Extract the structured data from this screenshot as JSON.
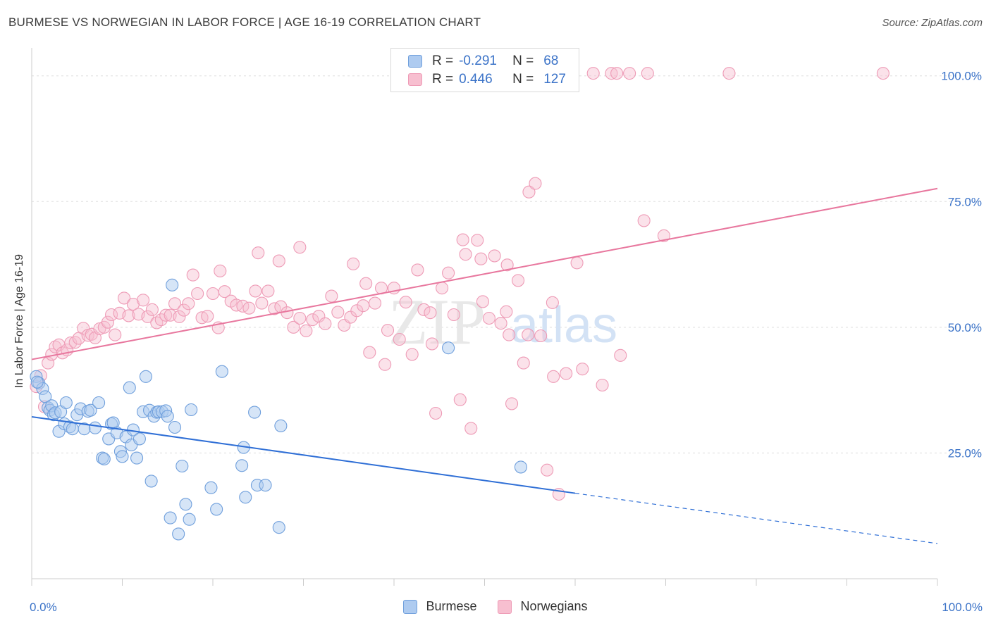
{
  "title": "BURMESE VS NORWEGIAN IN LABOR FORCE | AGE 16-19 CORRELATION CHART",
  "source": "Source: ZipAtlas.com",
  "watermark": {
    "zip": "ZIP",
    "atlas": "atlas"
  },
  "colors": {
    "burmese_fill": "#aecbf0",
    "burmese_stroke": "#6f9fdc",
    "burmese_line": "#2f6fd6",
    "norwegian_fill": "#f7bfd0",
    "norwegian_stroke": "#ee9bb6",
    "norwegian_line": "#e8779e",
    "axis_label": "#3b73c8",
    "grid": "#dddddd"
  },
  "legend": {
    "rows": [
      {
        "r_label": "R =",
        "r_value": "-0.291",
        "n_label": "N =",
        "n_value": "68"
      },
      {
        "r_label": "R =",
        "r_value": "0.446",
        "n_label": "N =",
        "n_value": "127"
      }
    ],
    "bottom": [
      "Burmese",
      "Norwegians"
    ]
  },
  "chart_data": {
    "type": "scatter",
    "title": "BURMESE VS NORWEGIAN IN LABOR FORCE | AGE 16-19 CORRELATION CHART",
    "xlabel": "",
    "ylabel": "In Labor Force | Age 16-19",
    "xlim": [
      0,
      100
    ],
    "ylim": [
      0,
      105
    ],
    "x_tick_labels": [
      "0.0%",
      "100.0%"
    ],
    "y_ticks": [
      25,
      50,
      75,
      100
    ],
    "y_tick_labels": [
      "25.0%",
      "50.0%",
      "75.0%",
      "100.0%"
    ],
    "grid": true,
    "legend_position": "top-center",
    "series": [
      {
        "name": "Burmese",
        "r": -0.291,
        "n": 68,
        "trend": {
          "x0": 0,
          "y0": 32.2,
          "x1": 60,
          "y1": 17.0,
          "dashed_to_x": 100,
          "dashed_to_y": 7.0
        },
        "points": [
          [
            0.5,
            40.2
          ],
          [
            0.8,
            38.9
          ],
          [
            1.2,
            37.8
          ],
          [
            1.5,
            36.2
          ],
          [
            1.8,
            34.0
          ],
          [
            2.0,
            33.5
          ],
          [
            2.2,
            34.4
          ],
          [
            2.4,
            32.6
          ],
          [
            2.6,
            33.0
          ],
          [
            3.0,
            29.3
          ],
          [
            3.2,
            33.2
          ],
          [
            3.6,
            30.8
          ],
          [
            3.8,
            35.0
          ],
          [
            4.2,
            30.2
          ],
          [
            4.5,
            29.8
          ],
          [
            5.0,
            32.6
          ],
          [
            5.4,
            33.8
          ],
          [
            5.8,
            29.8
          ],
          [
            6.2,
            33.3
          ],
          [
            6.5,
            33.5
          ],
          [
            7.0,
            30.0
          ],
          [
            7.4,
            35.0
          ],
          [
            7.8,
            24.0
          ],
          [
            8.0,
            23.8
          ],
          [
            8.5,
            27.8
          ],
          [
            8.8,
            30.8
          ],
          [
            9.0,
            31.0
          ],
          [
            9.4,
            29.0
          ],
          [
            9.8,
            25.3
          ],
          [
            10.0,
            24.3
          ],
          [
            10.4,
            28.2
          ],
          [
            10.8,
            38.0
          ],
          [
            11.0,
            26.6
          ],
          [
            11.2,
            29.6
          ],
          [
            11.6,
            24.0
          ],
          [
            11.9,
            27.8
          ],
          [
            12.3,
            33.2
          ],
          [
            12.6,
            40.2
          ],
          [
            13.0,
            33.5
          ],
          [
            13.2,
            19.4
          ],
          [
            13.5,
            32.3
          ],
          [
            13.8,
            33.1
          ],
          [
            14.0,
            33.2
          ],
          [
            14.4,
            33.2
          ],
          [
            14.8,
            33.4
          ],
          [
            15.0,
            32.3
          ],
          [
            15.3,
            12.1
          ],
          [
            15.5,
            58.4
          ],
          [
            15.8,
            30.1
          ],
          [
            16.2,
            8.9
          ],
          [
            16.6,
            22.4
          ],
          [
            17.0,
            14.8
          ],
          [
            17.4,
            11.8
          ],
          [
            17.6,
            33.6
          ],
          [
            19.8,
            18.1
          ],
          [
            20.4,
            13.8
          ],
          [
            21.0,
            41.2
          ],
          [
            23.4,
            26.1
          ],
          [
            23.2,
            22.5
          ],
          [
            23.6,
            16.2
          ],
          [
            24.6,
            33.1
          ],
          [
            24.9,
            18.6
          ],
          [
            25.8,
            18.6
          ],
          [
            27.3,
            10.2
          ],
          [
            27.5,
            30.4
          ],
          [
            46.0,
            45.9
          ],
          [
            54.0,
            22.2
          ],
          [
            0.6,
            39.1
          ]
        ]
      },
      {
        "name": "Norwegians",
        "r": 0.446,
        "n": 127,
        "trend": {
          "x0": 0,
          "y0": 43.6,
          "x1": 100,
          "y1": 77.6
        },
        "points": [
          [
            0.5,
            38.2
          ],
          [
            1.0,
            40.4
          ],
          [
            1.4,
            34.2
          ],
          [
            1.8,
            42.9
          ],
          [
            2.2,
            44.6
          ],
          [
            2.6,
            46.1
          ],
          [
            3.0,
            46.5
          ],
          [
            3.4,
            44.9
          ],
          [
            3.9,
            45.5
          ],
          [
            4.3,
            46.9
          ],
          [
            4.8,
            47.0
          ],
          [
            5.2,
            47.8
          ],
          [
            5.7,
            49.8
          ],
          [
            6.2,
            48.4
          ],
          [
            6.6,
            48.6
          ],
          [
            7.0,
            47.9
          ],
          [
            7.5,
            49.7
          ],
          [
            8.0,
            50.0
          ],
          [
            8.4,
            51.0
          ],
          [
            8.8,
            52.5
          ],
          [
            9.2,
            48.5
          ],
          [
            9.7,
            52.8
          ],
          [
            10.2,
            55.8
          ],
          [
            10.7,
            52.3
          ],
          [
            11.2,
            54.6
          ],
          [
            11.8,
            52.6
          ],
          [
            12.3,
            55.4
          ],
          [
            12.8,
            52.1
          ],
          [
            13.3,
            53.5
          ],
          [
            13.8,
            50.9
          ],
          [
            14.3,
            51.5
          ],
          [
            14.8,
            52.4
          ],
          [
            15.3,
            52.4
          ],
          [
            15.8,
            54.7
          ],
          [
            16.3,
            52.1
          ],
          [
            16.8,
            53.4
          ],
          [
            17.3,
            54.7
          ],
          [
            17.8,
            60.4
          ],
          [
            18.3,
            56.7
          ],
          [
            18.8,
            51.9
          ],
          [
            19.4,
            52.2
          ],
          [
            20.0,
            56.7
          ],
          [
            20.6,
            49.9
          ],
          [
            21.3,
            57.1
          ],
          [
            22.0,
            55.2
          ],
          [
            22.6,
            54.4
          ],
          [
            23.3,
            54.2
          ],
          [
            24.0,
            53.8
          ],
          [
            24.7,
            57.2
          ],
          [
            25.4,
            54.8
          ],
          [
            26.1,
            57.2
          ],
          [
            26.8,
            53.7
          ],
          [
            27.5,
            54.1
          ],
          [
            28.2,
            52.9
          ],
          [
            28.9,
            50.0
          ],
          [
            29.6,
            51.8
          ],
          [
            30.3,
            49.3
          ],
          [
            31.0,
            51.5
          ],
          [
            31.7,
            52.2
          ],
          [
            32.4,
            50.7
          ],
          [
            33.1,
            56.2
          ],
          [
            33.8,
            53.0
          ],
          [
            34.5,
            50.4
          ],
          [
            35.2,
            52.0
          ],
          [
            35.9,
            53.3
          ],
          [
            36.6,
            54.3
          ],
          [
            37.3,
            45.0
          ],
          [
            37.9,
            54.8
          ],
          [
            38.6,
            57.8
          ],
          [
            39.3,
            49.4
          ],
          [
            40.0,
            57.8
          ],
          [
            40.6,
            47.6
          ],
          [
            41.3,
            55.0
          ],
          [
            42.0,
            44.6
          ],
          [
            42.6,
            61.4
          ],
          [
            43.3,
            53.5
          ],
          [
            44.0,
            52.9
          ],
          [
            44.6,
            32.9
          ],
          [
            45.3,
            57.8
          ],
          [
            46.0,
            60.8
          ],
          [
            46.6,
            52.5
          ],
          [
            47.3,
            35.6
          ],
          [
            47.9,
            64.5
          ],
          [
            48.5,
            29.9
          ],
          [
            49.2,
            67.3
          ],
          [
            49.8,
            55.1
          ],
          [
            50.5,
            51.8
          ],
          [
            51.1,
            64.2
          ],
          [
            51.8,
            50.8
          ],
          [
            52.4,
            53.1
          ],
          [
            53.0,
            34.8
          ],
          [
            53.7,
            59.3
          ],
          [
            54.3,
            42.9
          ],
          [
            54.9,
            76.9
          ],
          [
            55.6,
            78.6
          ],
          [
            56.2,
            48.3
          ],
          [
            56.9,
            21.6
          ],
          [
            57.5,
            54.9
          ],
          [
            58.2,
            16.8
          ],
          [
            59.0,
            40.8
          ],
          [
            60.2,
            62.8
          ],
          [
            60.8,
            41.7
          ],
          [
            25.0,
            64.8
          ],
          [
            27.3,
            63.2
          ],
          [
            29.6,
            65.9
          ],
          [
            20.8,
            61.2
          ],
          [
            35.5,
            62.6
          ],
          [
            36.9,
            58.7
          ],
          [
            39.0,
            42.6
          ],
          [
            44.2,
            46.7
          ],
          [
            47.6,
            67.4
          ],
          [
            49.6,
            63.6
          ],
          [
            52.7,
            48.5
          ],
          [
            54.8,
            48.5
          ],
          [
            63.0,
            38.5
          ],
          [
            65.0,
            44.4
          ],
          [
            67.6,
            71.2
          ],
          [
            69.8,
            68.2
          ],
          [
            62.0,
            100.5
          ],
          [
            64.0,
            100.5
          ],
          [
            64.6,
            100.5
          ],
          [
            66.0,
            100.5
          ],
          [
            68.0,
            100.5
          ],
          [
            77.0,
            100.5
          ],
          [
            94.0,
            100.5
          ],
          [
            52.5,
            62.4
          ],
          [
            57.6,
            40.2
          ]
        ]
      }
    ]
  }
}
